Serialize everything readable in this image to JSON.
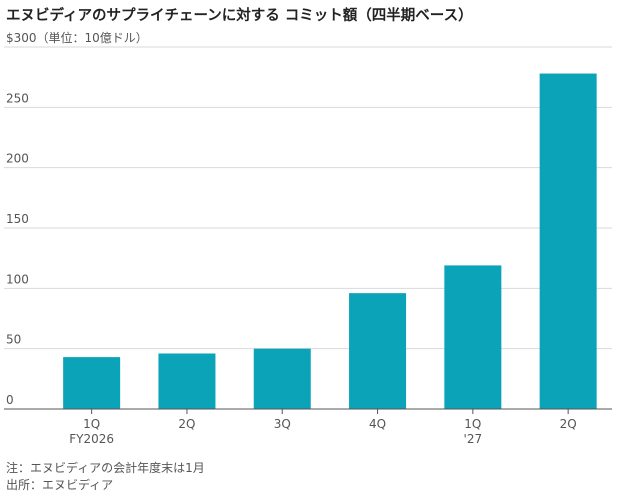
{
  "title": "エヌビディアのサプライチェーンに対する コミット額（四半期ベース）",
  "colors": {
    "bar": "#0aa3b8",
    "grid": "#d9d9d9",
    "axis": "#555555",
    "text": "#555555"
  },
  "footer": {
    "note": "注：エヌビディアの会計年度末は1月",
    "source": "出所：エヌビディア"
  },
  "chart_data": {
    "type": "bar",
    "ylabel": "$300（単位：10億ドル）",
    "ylim": [
      0,
      300
    ],
    "yticks": [
      0,
      50,
      100,
      150,
      200,
      250
    ],
    "ytick_labels": [
      "0",
      "50",
      "100",
      "150",
      "200",
      "250"
    ],
    "top_tick_value": 300,
    "categories": [
      "1Q",
      "2Q",
      "3Q",
      "4Q",
      "1Q",
      "2Q"
    ],
    "sublabels": [
      "FY2026",
      "",
      "",
      "",
      "'27",
      ""
    ],
    "values": [
      43,
      46,
      50,
      96,
      119,
      278
    ],
    "grid": true
  }
}
